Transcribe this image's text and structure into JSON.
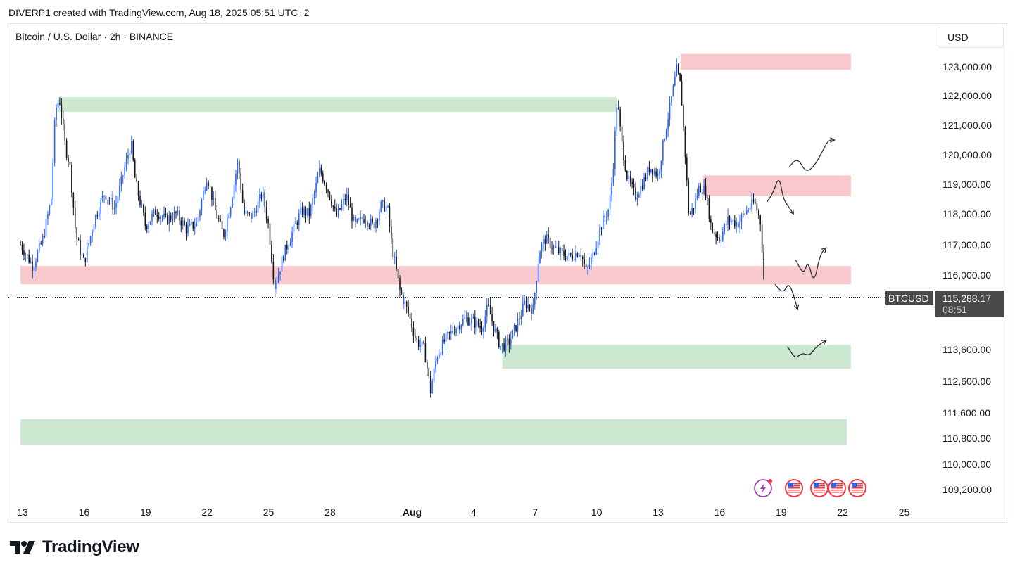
{
  "header": {
    "caption": "DIVERP1 created with TradingView.com, Aug 18, 2025 05:51 UTC+2",
    "symbol_title": "Bitcoin / U.S. Dollar · 2h · BINANCE",
    "currency": "USD"
  },
  "last_price": {
    "symbol": "BTCUSD",
    "price_label": "115,288.17",
    "countdown": "08:51",
    "value": 115288.17
  },
  "brand": {
    "name": "TradingView"
  },
  "colors": {
    "up": "#2962ff",
    "down": "#131722",
    "supply_zone": "#f7c9cc",
    "demand_zone": "#cde8d0",
    "price_tag": "#4a4a4a"
  },
  "icons": [
    "lightning-event-icon",
    "us-flag-event-icon"
  ],
  "chart_data": {
    "type": "candlestick",
    "title": "Bitcoin / U.S. Dollar · 2h · BINANCE",
    "y_axis": {
      "tick_values": [
        123000,
        122000,
        121000,
        120000,
        119000,
        118000,
        117000,
        116000,
        113600,
        112600,
        111600,
        110800,
        110000,
        109200
      ],
      "tick_labels": [
        "123,000.00",
        "122,000.00",
        "121,000.00",
        "120,000.00",
        "119,000.00",
        "118,000.00",
        "117,000.00",
        "116,000.00",
        "113,600.00",
        "112,600.00",
        "111,600.00",
        "110,800.00",
        "110,000.00",
        "109,200.00"
      ]
    },
    "x_axis": {
      "tick_labels": [
        "13",
        "16",
        "19",
        "22",
        "25",
        "28",
        "Aug",
        "4",
        "7",
        "10",
        "13",
        "16",
        "19",
        "22",
        "25"
      ],
      "tick_days": [
        13,
        16,
        19,
        22,
        25,
        28,
        32,
        35,
        38,
        41,
        44,
        47,
        50,
        53,
        56
      ],
      "bold": [
        "Aug"
      ],
      "unit": "day index (Jul 13 = 13, Aug 1 = 32)"
    },
    "price_path": [
      [
        12.9,
        117000
      ],
      [
        13.5,
        116300
      ],
      [
        14.0,
        117200
      ],
      [
        14.4,
        118500
      ],
      [
        14.6,
        121500
      ],
      [
        14.8,
        121900
      ],
      [
        15.1,
        120200
      ],
      [
        15.3,
        119700
      ],
      [
        15.6,
        117300
      ],
      [
        16.0,
        116400
      ],
      [
        16.5,
        117800
      ],
      [
        17.0,
        118700
      ],
      [
        17.5,
        118200
      ],
      [
        18.0,
        119600
      ],
      [
        18.3,
        120400
      ],
      [
        18.5,
        119100
      ],
      [
        19.0,
        117600
      ],
      [
        19.5,
        118100
      ],
      [
        20.0,
        117800
      ],
      [
        20.5,
        118000
      ],
      [
        21.0,
        117500
      ],
      [
        21.5,
        117700
      ],
      [
        22.0,
        119300
      ],
      [
        22.4,
        118100
      ],
      [
        22.8,
        117300
      ],
      [
        23.2,
        118500
      ],
      [
        23.5,
        119800
      ],
      [
        23.8,
        118000
      ],
      [
        24.2,
        117900
      ],
      [
        24.7,
        118700
      ],
      [
        25.0,
        117600
      ],
      [
        25.3,
        115600
      ],
      [
        25.7,
        116600
      ],
      [
        26.1,
        117300
      ],
      [
        26.6,
        118100
      ],
      [
        27.0,
        118000
      ],
      [
        27.5,
        119500
      ],
      [
        27.9,
        118800
      ],
      [
        28.3,
        117900
      ],
      [
        28.8,
        118600
      ],
      [
        29.2,
        117600
      ],
      [
        29.7,
        117900
      ],
      [
        30.1,
        117600
      ],
      [
        30.5,
        118300
      ],
      [
        30.8,
        118200
      ],
      [
        31.0,
        117000
      ],
      [
        31.4,
        115500
      ],
      [
        31.8,
        114800
      ],
      [
        32.2,
        113900
      ],
      [
        32.6,
        113600
      ],
      [
        32.9,
        112300
      ],
      [
        33.2,
        113400
      ],
      [
        33.6,
        113900
      ],
      [
        34.1,
        114300
      ],
      [
        34.6,
        114600
      ],
      [
        35.0,
        114500
      ],
      [
        35.4,
        114300
      ],
      [
        35.7,
        115000
      ],
      [
        36.0,
        114300
      ],
      [
        36.3,
        113700
      ],
      [
        36.7,
        113800
      ],
      [
        37.1,
        114400
      ],
      [
        37.5,
        115100
      ],
      [
        37.9,
        114900
      ],
      [
        38.2,
        116800
      ],
      [
        38.5,
        117200
      ],
      [
        38.9,
        116900
      ],
      [
        39.3,
        116700
      ],
      [
        39.7,
        116600
      ],
      [
        40.2,
        116800
      ],
      [
        40.5,
        116100
      ],
      [
        40.8,
        116600
      ],
      [
        41.2,
        117600
      ],
      [
        41.6,
        118200
      ],
      [
        41.8,
        119500
      ],
      [
        42.0,
        121900
      ],
      [
        42.2,
        120500
      ],
      [
        42.5,
        119200
      ],
      [
        42.9,
        118600
      ],
      [
        43.3,
        119100
      ],
      [
        43.6,
        119600
      ],
      [
        44.0,
        119300
      ],
      [
        44.3,
        120600
      ],
      [
        44.7,
        122100
      ],
      [
        44.9,
        122900
      ],
      [
        45.1,
        122300
      ],
      [
        45.3,
        120200
      ],
      [
        45.5,
        117900
      ],
      [
        45.7,
        118200
      ],
      [
        46.0,
        118900
      ],
      [
        46.3,
        118800
      ],
      [
        46.6,
        117500
      ],
      [
        47.0,
        117200
      ],
      [
        47.4,
        117800
      ],
      [
        47.9,
        117700
      ],
      [
        48.3,
        118100
      ],
      [
        48.7,
        118400
      ],
      [
        49.0,
        117700
      ],
      [
        49.2,
        115300
      ]
    ],
    "zones": [
      {
        "kind": "resistance",
        "from_day": 45.1,
        "to_day": 53.4,
        "low": 122900,
        "high": 123450
      },
      {
        "kind": "resistance",
        "from_day": 46.2,
        "to_day": 53.4,
        "low": 118600,
        "high": 119300
      },
      {
        "kind": "resistance",
        "from_day": 12.9,
        "to_day": 53.4,
        "low": 115700,
        "high": 116300
      },
      {
        "kind": "support",
        "from_day": 14.7,
        "to_day": 42.0,
        "low": 121450,
        "high": 121950
      },
      {
        "kind": "support",
        "from_day": 36.4,
        "to_day": 53.4,
        "low": 113000,
        "high": 113750
      },
      {
        "kind": "support",
        "from_day": 12.9,
        "to_day": 53.2,
        "low": 110600,
        "high": 111400
      }
    ],
    "projections": [
      [
        [
          49.3,
          118400
        ],
        [
          49.6,
          118700
        ],
        [
          49.9,
          119300
        ],
        [
          50.1,
          118500
        ],
        [
          50.4,
          118200
        ],
        [
          50.6,
          118000
        ]
      ],
      [
        [
          50.4,
          119600
        ],
        [
          50.8,
          119900
        ],
        [
          51.2,
          119400
        ],
        [
          51.6,
          119600
        ],
        [
          52.0,
          120100
        ],
        [
          52.3,
          120500
        ],
        [
          52.6,
          120500
        ]
      ],
      [
        [
          50.7,
          116500
        ],
        [
          51.1,
          116000
        ],
        [
          51.3,
          116500
        ],
        [
          51.6,
          115700
        ],
        [
          51.9,
          116700
        ],
        [
          52.2,
          116900
        ]
      ],
      [
        [
          49.7,
          115700
        ],
        [
          50.1,
          115400
        ],
        [
          50.4,
          115800
        ],
        [
          50.8,
          114900
        ]
      ],
      [
        [
          50.3,
          113700
        ],
        [
          50.7,
          113300
        ],
        [
          51.0,
          113500
        ],
        [
          51.4,
          113400
        ],
        [
          51.7,
          113700
        ],
        [
          52.2,
          113900
        ]
      ]
    ],
    "grid": false,
    "legend": "none"
  }
}
